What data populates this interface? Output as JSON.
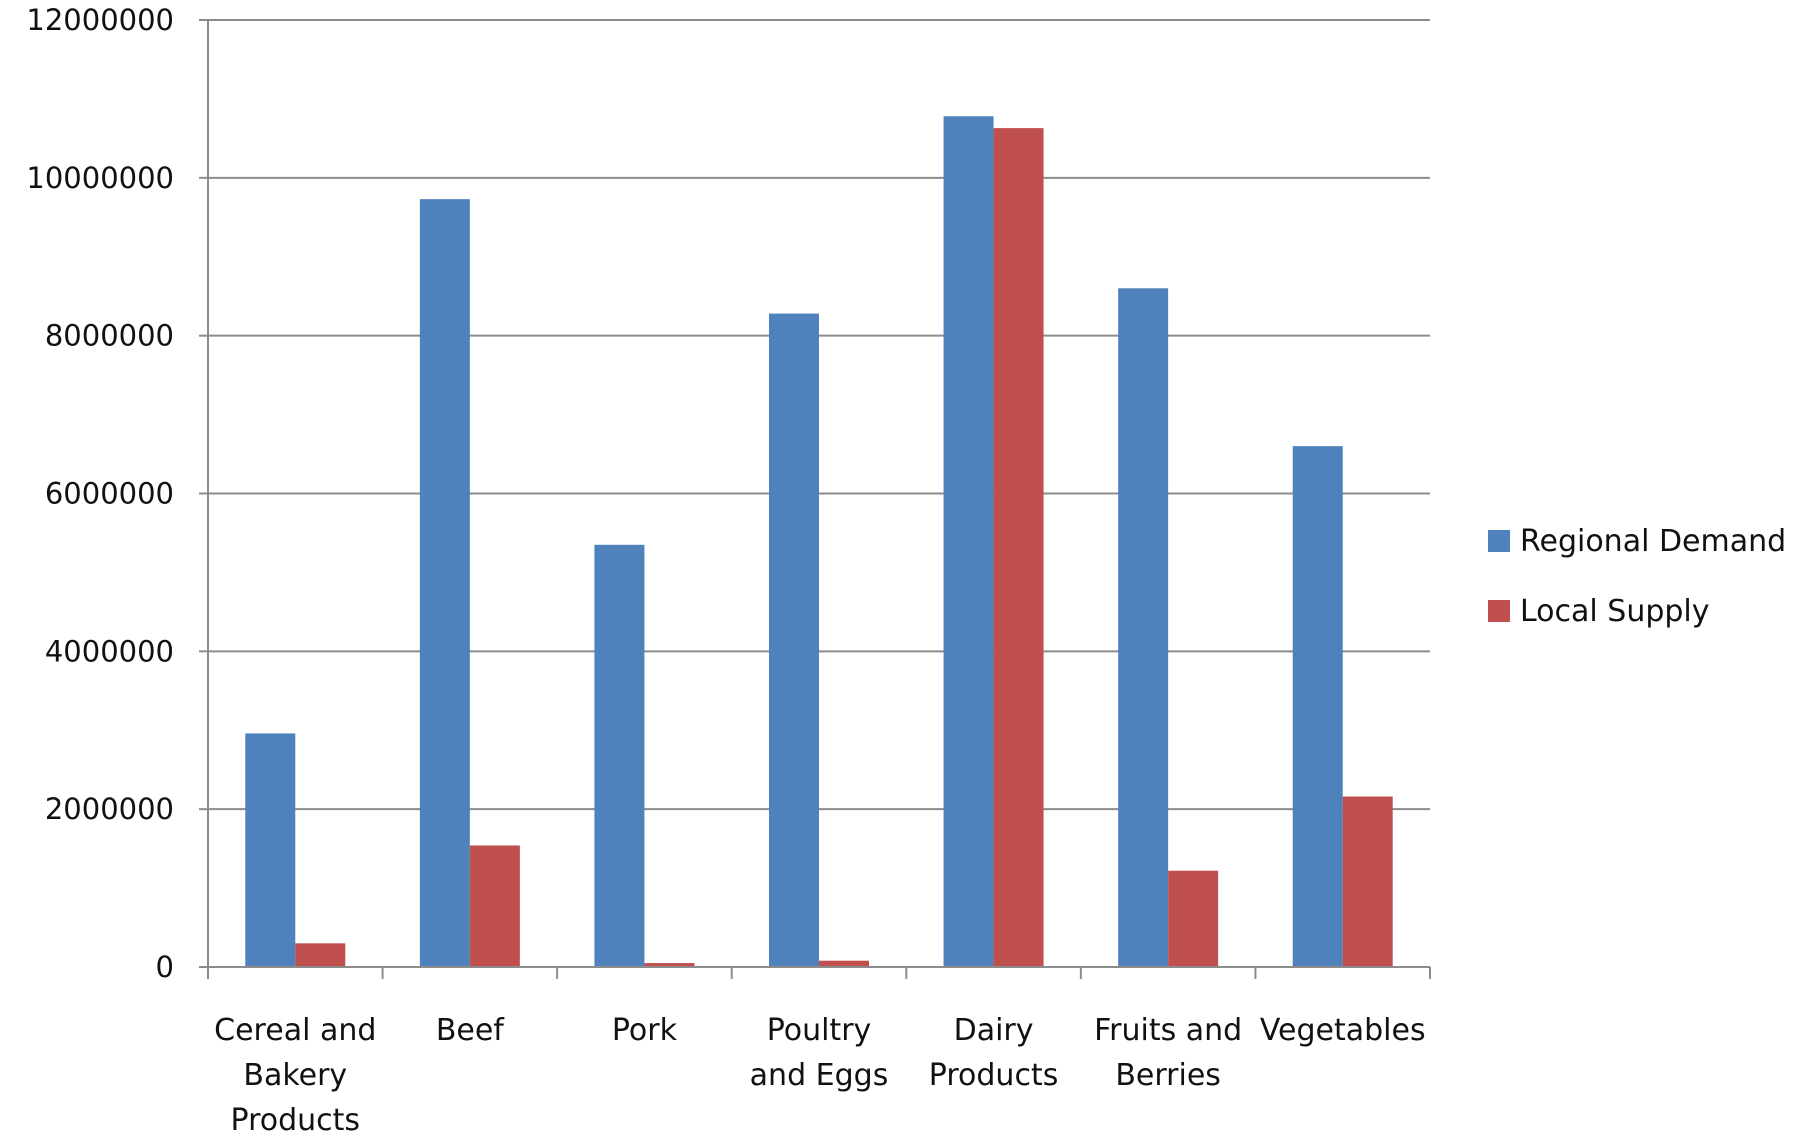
{
  "chart_data": {
    "type": "bar",
    "title": "",
    "xlabel": "",
    "ylabel": "",
    "categories": [
      [
        "Cereal and",
        "Bakery",
        "Products"
      ],
      [
        "Beef"
      ],
      [
        "Pork"
      ],
      [
        "Poultry",
        "and Eggs"
      ],
      [
        "Dairy",
        "Products"
      ],
      [
        "Fruits and",
        "Berries"
      ],
      [
        "Vegetables"
      ]
    ],
    "series": [
      {
        "name": "Regional Demand",
        "color": "#4f81bd",
        "values": [
          2960000,
          9730000,
          5350000,
          8280000,
          10780000,
          8600000,
          6600000
        ]
      },
      {
        "name": "Local Supply",
        "color": "#c0504d",
        "values": [
          300000,
          1540000,
          50000,
          80000,
          10630000,
          1220000,
          2160000
        ]
      }
    ],
    "ylim": [
      0,
      12000000
    ],
    "yticks": [
      0,
      2000000,
      4000000,
      6000000,
      8000000,
      10000000,
      12000000
    ],
    "ytick_labels": [
      "0",
      "2000000",
      "4000000",
      "6000000",
      "8000000",
      "10000000",
      "12000000"
    ],
    "grid": true,
    "legend_position": "right"
  }
}
